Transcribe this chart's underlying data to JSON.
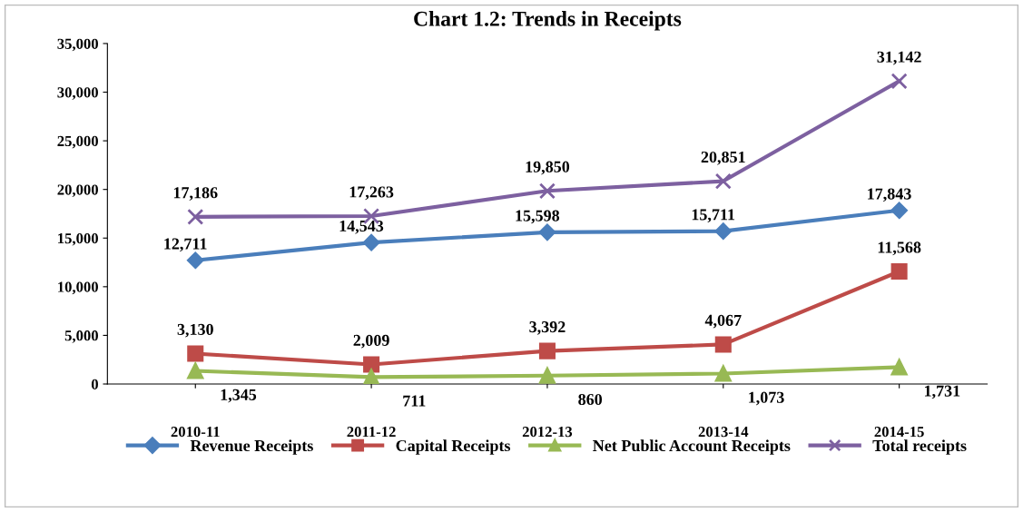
{
  "chart_data": {
    "type": "line",
    "title": "Chart 1.2: Trends in Receipts",
    "categories": [
      "2010-11",
      "2011-12",
      "2012-13",
      "2013-14",
      "2014-15"
    ],
    "series": [
      {
        "name": "Revenue Receipts",
        "color": "#4a7ebb",
        "marker": "diamond",
        "values": [
          12711,
          14543,
          15598,
          15711,
          17843
        ],
        "value_labels": [
          "12,711",
          "14,543",
          "15,598",
          "15,711",
          "17,843"
        ]
      },
      {
        "name": "Capital Receipts",
        "color": "#be4b48",
        "marker": "square",
        "values": [
          3130,
          2009,
          3392,
          4067,
          11568
        ],
        "value_labels": [
          "3,130",
          "2,009",
          "3,392",
          "4,067",
          "11,568"
        ]
      },
      {
        "name": "Net Public Account Receipts",
        "color": "#98b954",
        "marker": "triangle",
        "values": [
          1345,
          711,
          860,
          1073,
          1731
        ],
        "value_labels": [
          "1,345",
          "711",
          "860",
          "1,073",
          "1,731"
        ]
      },
      {
        "name": "Total receipts",
        "color": "#7d60a0",
        "marker": "cross",
        "values": [
          17186,
          17263,
          19850,
          20851,
          31142
        ],
        "value_labels": [
          "17,186",
          "17,263",
          "19,850",
          "20,851",
          "31,142"
        ]
      }
    ],
    "ylim": [
      0,
      35000
    ],
    "yticks": [
      {
        "value": 0,
        "label": "0"
      },
      {
        "value": 5000,
        "label": "5,000"
      },
      {
        "value": 10000,
        "label": "10,000"
      },
      {
        "value": 15000,
        "label": "15,000"
      },
      {
        "value": 20000,
        "label": "20,000"
      },
      {
        "value": 25000,
        "label": "25,000"
      },
      {
        "value": 30000,
        "label": "30,000"
      },
      {
        "value": 35000,
        "label": "35,000"
      }
    ],
    "legend": "bottom",
    "grid": false,
    "line_style": "solid"
  }
}
